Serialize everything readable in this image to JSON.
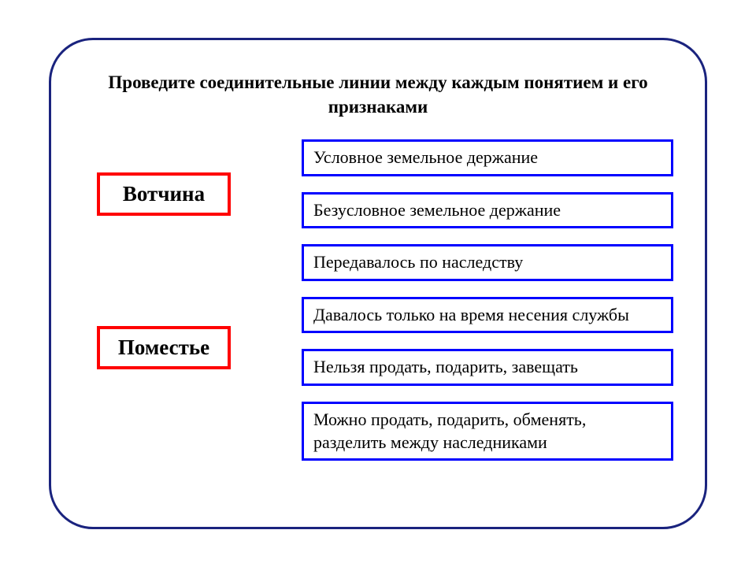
{
  "title": "Проведите соединительные линии между каждым понятием и его признаками",
  "title_fontsize": 23,
  "title_color": "#000000",
  "frame": {
    "border_color": "#1a237e",
    "border_width": 3,
    "border_radius": 56
  },
  "concepts": [
    {
      "label": "Вотчина",
      "border_color": "#ff0000",
      "border_width": 4,
      "fontsize": 27
    },
    {
      "label": "Поместье",
      "border_color": "#ff0000",
      "border_width": 4,
      "fontsize": 27
    }
  ],
  "attributes_style": {
    "border_color": "#0000ff",
    "border_width": 3,
    "fontsize": 22,
    "text_color": "#000000"
  },
  "attributes": [
    "Условное земельное держание",
    "Безусловное земельное держание",
    "Передавалось по наследству",
    "Давалось только на время несения службы",
    "Нельзя продать, подарить, завещать",
    "Можно продать, подарить, обменять, разделить между наследниками"
  ]
}
